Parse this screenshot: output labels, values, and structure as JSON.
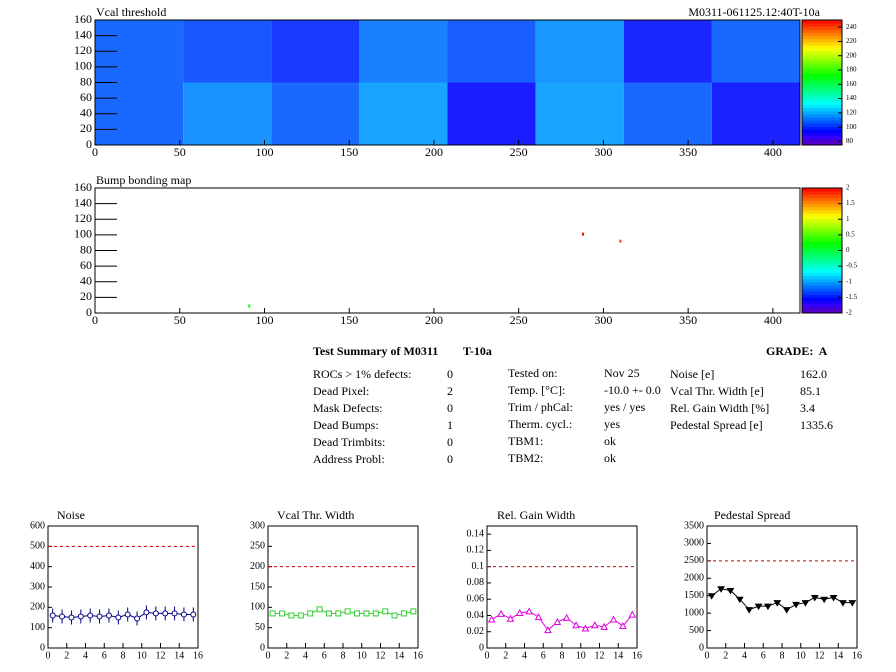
{
  "chart_data": [
    {
      "type": "heatmap",
      "title": "Vcal threshold",
      "subtitle": "M0311-061125.12:40T-10a",
      "xlim": [
        0,
        416
      ],
      "ylim": [
        0,
        160
      ],
      "xticks": [
        0,
        50,
        100,
        150,
        200,
        250,
        300,
        350,
        400
      ],
      "yticks": [
        0,
        20,
        40,
        60,
        80,
        100,
        120,
        140,
        160
      ],
      "xbins": [
        0,
        52,
        104,
        156,
        208,
        260,
        312,
        364,
        416
      ],
      "ybins": [
        0,
        80,
        160
      ],
      "values": [
        [
          108,
          115,
          108,
          118,
          95,
          118,
          108,
          96
        ],
        [
          108,
          105,
          100,
          112,
          106,
          116,
          97,
          108
        ]
      ],
      "zlim": [
        75,
        250
      ],
      "zticks": [
        80,
        100,
        120,
        140,
        160,
        180,
        200,
        220,
        240
      ]
    },
    {
      "type": "scatter",
      "title": "Bump bonding map",
      "xlim": [
        0,
        416
      ],
      "ylim": [
        0,
        160
      ],
      "xticks": [
        0,
        50,
        100,
        150,
        200,
        250,
        300,
        350,
        400
      ],
      "yticks": [
        0,
        20,
        40,
        60,
        80,
        100,
        120,
        140,
        160
      ],
      "x": [
        91,
        288,
        310
      ],
      "y": [
        9,
        101,
        92
      ],
      "z": [
        0.2,
        2,
        1.8
      ],
      "zlim": [
        -2,
        2
      ],
      "zticks": [
        -2,
        -1.5,
        -1,
        -0.5,
        0,
        0.5,
        1,
        1.5,
        2
      ]
    },
    {
      "type": "line",
      "title": "Noise",
      "marker": "circle",
      "color": "#000080",
      "xlim": [
        0,
        16
      ],
      "ylim": [
        0,
        600
      ],
      "xticks": [
        0,
        2,
        4,
        6,
        8,
        10,
        12,
        14,
        16
      ],
      "yticks": [
        0,
        100,
        200,
        300,
        400,
        500,
        600
      ],
      "threshold": 500,
      "x": [
        0.5,
        1.5,
        2.5,
        3.5,
        4.5,
        5.5,
        6.5,
        7.5,
        8.5,
        9.5,
        10.5,
        11.5,
        12.5,
        13.5,
        14.5,
        15.5
      ],
      "values": [
        160,
        155,
        150,
        155,
        160,
        155,
        160,
        150,
        165,
        145,
        175,
        170,
        170,
        170,
        165,
        165
      ]
    },
    {
      "type": "line",
      "title": "Vcal Thr. Width",
      "marker": "square",
      "color": "#33cc33",
      "xlim": [
        0,
        16
      ],
      "ylim": [
        0,
        300
      ],
      "xticks": [
        0,
        2,
        4,
        6,
        8,
        10,
        12,
        14,
        16
      ],
      "yticks": [
        0,
        50,
        100,
        150,
        200,
        250,
        300
      ],
      "threshold": 200,
      "x": [
        0.5,
        1.5,
        2.5,
        3.5,
        4.5,
        5.5,
        6.5,
        7.5,
        8.5,
        9.5,
        10.5,
        11.5,
        12.5,
        13.5,
        14.5,
        15.5
      ],
      "values": [
        85,
        85,
        80,
        80,
        85,
        95,
        85,
        85,
        90,
        85,
        85,
        85,
        90,
        80,
        85,
        90
      ]
    },
    {
      "type": "line",
      "title": "Rel. Gain Width",
      "marker": "triangle",
      "color": "#e000e0",
      "xlim": [
        0,
        16
      ],
      "ylim": [
        0,
        0.15
      ],
      "xticks": [
        0,
        2,
        4,
        6,
        8,
        10,
        12,
        14,
        16
      ],
      "yticks": [
        0,
        0.02,
        0.04,
        0.06,
        0.08,
        0.1,
        0.12,
        0.14
      ],
      "threshold": 0.1,
      "x": [
        0.5,
        1.5,
        2.5,
        3.5,
        4.5,
        5.5,
        6.5,
        7.5,
        8.5,
        9.5,
        10.5,
        11.5,
        12.5,
        13.5,
        14.5,
        15.5
      ],
      "values": [
        0.035,
        0.042,
        0.036,
        0.043,
        0.045,
        0.038,
        0.022,
        0.032,
        0.037,
        0.028,
        0.024,
        0.028,
        0.026,
        0.035,
        0.027,
        0.041
      ]
    },
    {
      "type": "line",
      "title": "Pedestal Spread",
      "marker": "filled",
      "color": "#000000",
      "xlim": [
        0,
        16
      ],
      "ylim": [
        0,
        3500
      ],
      "xticks": [
        0,
        2,
        4,
        6,
        8,
        10,
        12,
        14,
        16
      ],
      "yticks": [
        0,
        500,
        1000,
        1500,
        2000,
        2500,
        3000,
        3500
      ],
      "threshold": 2500,
      "x": [
        0.5,
        1.5,
        2.5,
        3.5,
        4.5,
        5.5,
        6.5,
        7.5,
        8.5,
        9.5,
        10.5,
        11.5,
        12.5,
        13.5,
        14.5,
        15.5
      ],
      "values": [
        1500,
        1700,
        1650,
        1400,
        1100,
        1200,
        1200,
        1300,
        1100,
        1250,
        1300,
        1450,
        1400,
        1450,
        1300,
        1300
      ]
    }
  ],
  "summary": {
    "title": "Test Summary of M0311",
    "tag": "T-10a",
    "grade": "GRADE:  A",
    "defects": [
      [
        "ROCs > 1% defects:",
        0
      ],
      [
        "Dead Pixel:",
        2
      ],
      [
        "Mask Defects:",
        0
      ],
      [
        "Dead Bumps:",
        1
      ],
      [
        "Dead Trimbits:",
        0
      ],
      [
        "Address Probl:",
        0
      ]
    ],
    "conditions": [
      [
        "Tested on:",
        "Nov 25"
      ],
      [
        "Temp. [°C]:",
        "-10.0 +- 0.0"
      ],
      [
        "Trim / phCal:",
        "yes / yes"
      ],
      [
        "Therm. cycl.:",
        "yes"
      ],
      [
        "TBM1:",
        "ok"
      ],
      [
        "TBM2:",
        "ok"
      ]
    ],
    "results": [
      [
        "Noise [e]",
        "162.0"
      ],
      [
        "Vcal Thr. Width [e]",
        "85.1"
      ],
      [
        "Rel. Gain Width [%]",
        "3.4"
      ],
      [
        "Pedestal Spread [e]",
        "1335.6"
      ]
    ]
  }
}
